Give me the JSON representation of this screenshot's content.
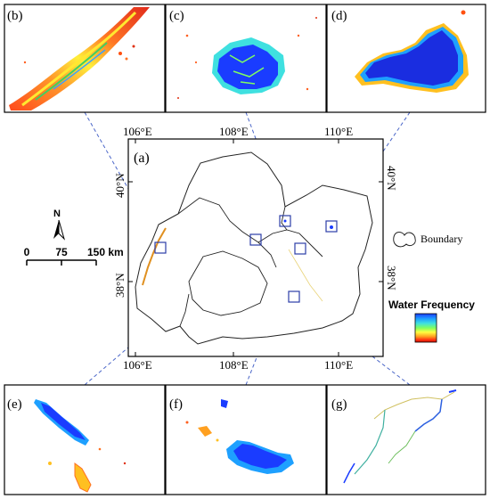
{
  "panels": {
    "a": "(a)",
    "b": "(b)",
    "c": "(c)",
    "d": "(d)",
    "e": "(e)",
    "f": "(f)",
    "g": "(g)"
  },
  "graticule": {
    "lon_top": [
      "106°E",
      "108°E",
      "110°E"
    ],
    "lon_bottom": [
      "106°E",
      "108°E",
      "110°E"
    ],
    "lat_left": [
      "40°N",
      "38°N"
    ],
    "lat_right": [
      "40°N",
      "38°N"
    ]
  },
  "north_label": "N",
  "scale_bar": {
    "labels": [
      "0",
      "75",
      "150 km"
    ]
  },
  "legend": {
    "boundary_label": "Boundary",
    "water_title": "Water Frequency",
    "ramp_colors": [
      "#1a3cff",
      "#1ea0ff",
      "#3fe0e0",
      "#7fff60",
      "#ffff40",
      "#ffa020",
      "#ff3010",
      "#d01000"
    ]
  },
  "colors": {
    "boundary": "#222222",
    "box": "#2c3ea8",
    "leader": "#4a66c8",
    "panel_frame": "#000000"
  }
}
